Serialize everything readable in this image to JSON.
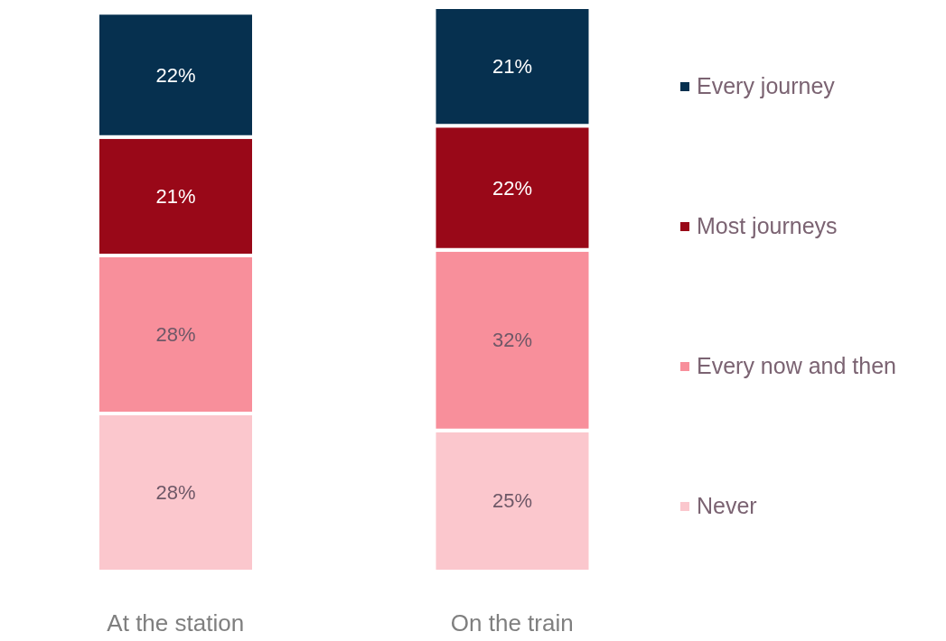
{
  "chart_data": {
    "type": "bar",
    "stacked": true,
    "legend": "right",
    "categories": [
      "At the station",
      "On the train"
    ],
    "series": [
      {
        "name": "Never",
        "color": "#fbc7cd",
        "values": [
          28,
          25
        ],
        "value_labels": [
          "28%",
          "25%"
        ]
      },
      {
        "name": "Every now and then",
        "color": "#f88f9b",
        "values": [
          28,
          32
        ],
        "value_labels": [
          "28%",
          "32%"
        ]
      },
      {
        "name": "Most journeys",
        "color": "#990818",
        "values": [
          21,
          22
        ],
        "value_labels": [
          "21%",
          "22%"
        ]
      },
      {
        "name": "Every journey",
        "color": "#06304f",
        "values": [
          22,
          21
        ],
        "value_labels": [
          "22%",
          "21%"
        ]
      }
    ]
  }
}
